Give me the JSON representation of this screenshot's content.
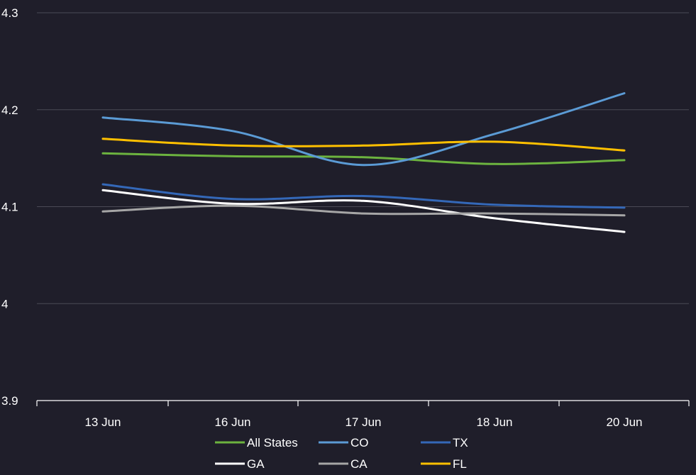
{
  "chart_data": {
    "type": "line",
    "categories": [
      "13 Jun",
      "16 Jun",
      "17 Jun",
      "18 Jun",
      "20 Jun"
    ],
    "ylim": [
      3.9,
      4.3
    ],
    "yticks": [
      {
        "value": 3.9,
        "label": "3.9"
      },
      {
        "value": 4.0,
        "label": "4"
      },
      {
        "value": 4.1,
        "label": "4.1"
      },
      {
        "value": 4.2,
        "label": "4.2"
      },
      {
        "value": 4.3,
        "label": "4.3"
      }
    ],
    "grid": true,
    "smooth": true,
    "legend_position": "bottom",
    "series": [
      {
        "name": "All States",
        "color": "#6cb33f",
        "values": [
          4.155,
          4.152,
          4.151,
          4.144,
          4.148
        ]
      },
      {
        "name": "CO",
        "color": "#5b9bd5",
        "values": [
          4.192,
          4.178,
          4.143,
          4.175,
          4.217
        ]
      },
      {
        "name": "TX",
        "color": "#3468b8",
        "values": [
          4.123,
          4.108,
          4.111,
          4.102,
          4.099
        ]
      },
      {
        "name": "GA",
        "color": "#ffffff",
        "values": [
          4.117,
          4.103,
          4.106,
          4.088,
          4.074
        ]
      },
      {
        "name": "CA",
        "color": "#a6a6a6",
        "values": [
          4.095,
          4.101,
          4.093,
          4.093,
          4.091
        ]
      },
      {
        "name": "FL",
        "color": "#ffc000",
        "values": [
          4.17,
          4.163,
          4.163,
          4.167,
          4.158
        ]
      }
    ]
  }
}
